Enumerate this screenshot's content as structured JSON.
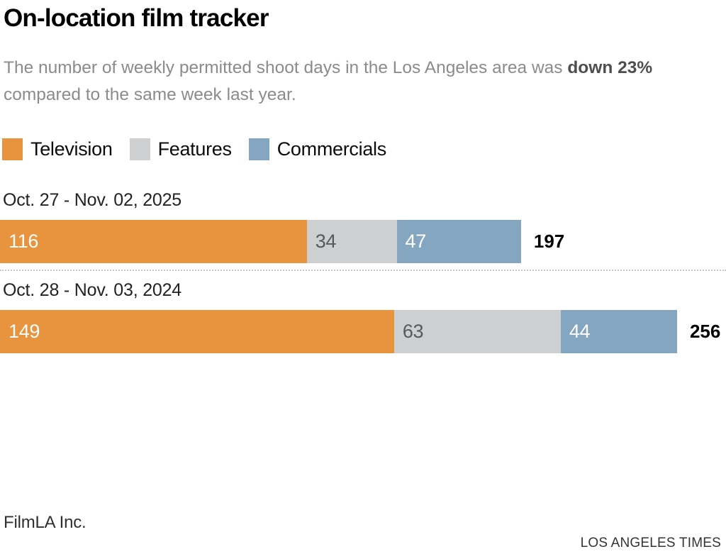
{
  "header": {
    "title": "On-location film tracker",
    "subtitle_prefix": "The number of weekly permitted shoot days in the Los Angeles area was ",
    "subtitle_bold": "down 23%",
    "subtitle_suffix": " compared to the same week last year."
  },
  "chart_data": {
    "type": "bar",
    "orientation": "horizontal",
    "stacked": true,
    "categories": [
      "Oct. 27 - Nov. 02, 2025",
      "Oct. 28 - Nov. 03, 2024"
    ],
    "series": [
      {
        "name": "Television",
        "color": "#E8943E",
        "label_color": "#FFFFFF",
        "values": [
          116,
          149
        ]
      },
      {
        "name": "Features",
        "color": "#CDCFD1",
        "label_color": "#58595B",
        "values": [
          34,
          63
        ]
      },
      {
        "name": "Commercials",
        "color": "#84A6C0",
        "label_color": "#FFFFFF",
        "values": [
          47,
          44
        ]
      }
    ],
    "totals": [
      197,
      256
    ],
    "xmax": 256,
    "max_bar_width_pct": 93.26,
    "legend_position": "top",
    "value_labels": "inside-start",
    "total_labels": "end",
    "grid": false
  },
  "footer": {
    "source": "FilmLA Inc.",
    "credit": "LOS ANGELES TIMES"
  }
}
